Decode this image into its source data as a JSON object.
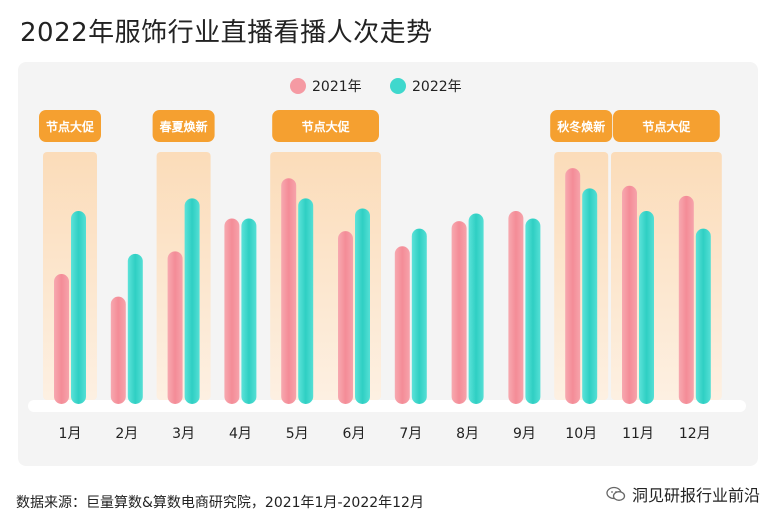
{
  "title": "2022年服饰行业直播看播人次走势",
  "source": "数据来源：巨量算数&算数电商研究院，2021年1月-2022年12月",
  "brand": "洞见研报行业前沿",
  "brand_icon": "wechat-icon",
  "colors": {
    "y2021": "#f59aa3",
    "y2022": "#3fd8cd",
    "label_bg": "#f5a030",
    "highlight": "#fbe3c6"
  },
  "chart_data": {
    "type": "bar",
    "title": "2022年服饰行业直播看播人次走势",
    "categories": [
      "1月",
      "2月",
      "3月",
      "4月",
      "5月",
      "6月",
      "7月",
      "8月",
      "9月",
      "10月",
      "11月",
      "12月"
    ],
    "series": [
      {
        "name": "2021年",
        "values": [
          50,
          41,
          59,
          72,
          88,
          67,
          61,
          71,
          75,
          92,
          85,
          81
        ]
      },
      {
        "name": "2022年",
        "values": [
          75,
          58,
          80,
          72,
          80,
          76,
          68,
          74,
          72,
          84,
          75,
          68
        ]
      }
    ],
    "ylim": [
      0,
      100
    ],
    "xlabel": "",
    "ylabel": "",
    "legend": "top-center",
    "annotations": [
      {
        "label": "节点大促",
        "start": 0,
        "end": 0
      },
      {
        "label": "春夏焕新",
        "start": 2,
        "end": 2
      },
      {
        "label": "节点大促",
        "start": 4,
        "end": 5
      },
      {
        "label": "秋冬焕新",
        "start": 9,
        "end": 9
      },
      {
        "label": "节点大促",
        "start": 10,
        "end": 11
      }
    ]
  }
}
